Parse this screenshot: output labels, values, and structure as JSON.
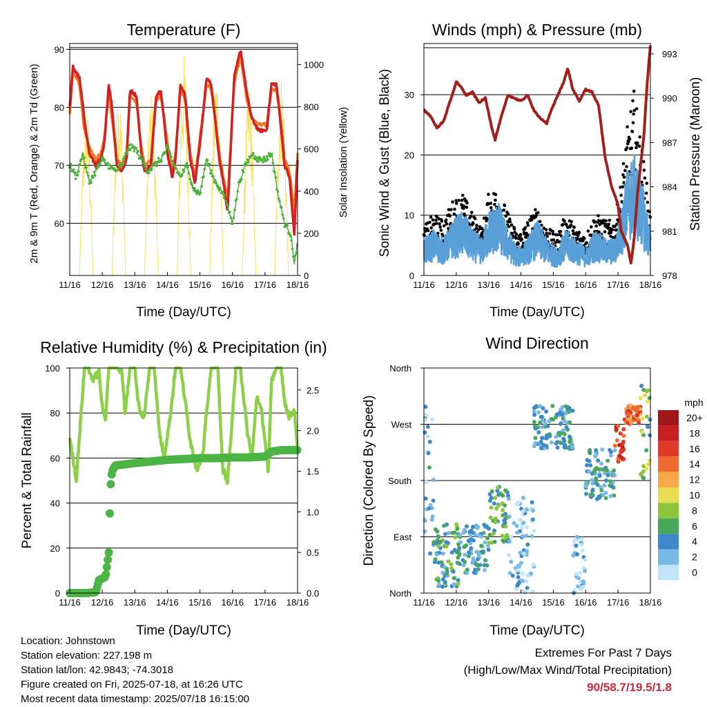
{
  "x_ticks": [
    "11/16",
    "12/16",
    "13/16",
    "14/16",
    "15/16",
    "16/16",
    "17/16",
    "18/16"
  ],
  "x_title": "Time (Day/UTC)",
  "colors": {
    "red": "#d42020",
    "orange": "#f07828",
    "green": "#4caf3c",
    "yellow": "#f8e060",
    "maroon": "#a0201e",
    "blue": "#5aa0d8",
    "black": "#000000",
    "rh_green": "#8cd04a",
    "precip_green": "#4cb444"
  },
  "temperature": {
    "title": "Temperature (F)",
    "ylabel_left": "2m & 9m T (Red, Orange) & 2m Td (Green)",
    "ylabel_right": "Solar Insolation (Yellow)",
    "left_ticks": [
      "60",
      "70",
      "80",
      "90"
    ],
    "right_ticks": [
      "0",
      "200",
      "400",
      "600",
      "800",
      "1000"
    ],
    "chart_data": {
      "type": "line",
      "ylim": [
        51,
        91
      ],
      "y2lim": [
        0,
        1100
      ],
      "x_range_days": [
        0,
        7
      ],
      "series": [
        {
          "name": "2m T (Red)",
          "x": [
            0,
            0.1,
            0.3,
            0.45,
            0.6,
            0.8,
            0.95,
            1.05,
            1.2,
            1.3,
            1.45,
            1.6,
            1.75,
            1.85,
            2.05,
            2.2,
            2.3,
            2.5,
            2.65,
            2.8,
            3.0,
            3.15,
            3.25,
            3.4,
            3.55,
            3.7,
            3.85,
            4.05,
            4.2,
            4.35,
            4.6,
            4.75,
            4.85,
            5.05,
            5.25,
            5.45,
            5.6,
            5.8,
            6.05,
            6.2,
            6.35,
            6.5,
            6.6,
            6.75,
            6.9,
            7.0
          ],
          "y": [
            80,
            87,
            85,
            78,
            72,
            70,
            71,
            73,
            84,
            80,
            70,
            69,
            71,
            83,
            82,
            72,
            69,
            70,
            82,
            83,
            72,
            68,
            71,
            84,
            82,
            71,
            67,
            76,
            85,
            84,
            71,
            66,
            62,
            85,
            90,
            82,
            78,
            76,
            76,
            84,
            84,
            76,
            70,
            68,
            58,
            71
          ]
        },
        {
          "name": "9m T (Orange)",
          "x": [
            0,
            0.1,
            0.3,
            0.45,
            0.6,
            0.8,
            0.95,
            1.05,
            1.2,
            1.3,
            1.45,
            1.6,
            1.75,
            1.85,
            2.05,
            2.2,
            2.3,
            2.5,
            2.65,
            2.8,
            3.0,
            3.15,
            3.25,
            3.4,
            3.55,
            3.7,
            3.85,
            4.05,
            4.2,
            4.35,
            4.6,
            4.75,
            4.85,
            5.05,
            5.25,
            5.45,
            5.6,
            5.8,
            6.05,
            6.2,
            6.35,
            6.5,
            6.6,
            6.75,
            6.9,
            7.0
          ],
          "y": [
            79,
            86,
            84,
            76,
            73,
            71,
            72,
            74,
            83,
            78,
            71,
            70,
            72,
            82,
            81,
            73,
            70,
            71,
            81,
            82,
            74,
            69,
            72,
            83,
            81,
            72,
            68,
            77,
            84,
            83,
            72,
            67,
            64,
            84,
            89,
            81,
            78,
            77,
            77,
            83,
            83,
            77,
            71,
            69,
            62,
            72
          ]
        },
        {
          "name": "2m Td (Green)",
          "x": [
            0,
            0.2,
            0.4,
            0.6,
            0.8,
            1.0,
            1.2,
            1.4,
            1.6,
            1.8,
            2.0,
            2.2,
            2.4,
            2.6,
            2.8,
            3.0,
            3.2,
            3.4,
            3.6,
            3.8,
            4.0,
            4.2,
            4.4,
            4.6,
            4.8,
            5.0,
            5.2,
            5.4,
            5.6,
            5.8,
            6.0,
            6.2,
            6.4,
            6.6,
            6.8,
            6.9,
            7.0
          ],
          "y": [
            70,
            68,
            72,
            67,
            69,
            71,
            70,
            69,
            70,
            73,
            73,
            71,
            69,
            70,
            71,
            73,
            70,
            68,
            70,
            66,
            65,
            71,
            68,
            66,
            64,
            60,
            67,
            70,
            72,
            71,
            71,
            72,
            65,
            60,
            58,
            53,
            57
          ]
        },
        {
          "name": "Solar Insolation (Yellow)",
          "axis": "y2",
          "peaks_x": [
            0.5,
            1.5,
            2.5,
            3.5,
            4.5,
            5.5,
            6.5
          ],
          "peaks_y": [
            820,
            900,
            880,
            1050,
            1000,
            920,
            960
          ]
        }
      ]
    }
  },
  "winds": {
    "title": "Winds (mph) & Pressure (mb)",
    "ylabel_left": "Sonic Wind & Gust (Blue, Black)",
    "ylabel_right": "Station Pressure (Maroon)",
    "left_ticks": [
      "0",
      "10",
      "20",
      "30"
    ],
    "right_ticks": [
      "978",
      "981",
      "984",
      "987",
      "990",
      "993"
    ],
    "chart_data": {
      "type": "line",
      "ylim": [
        0,
        38.5
      ],
      "y2lim": [
        978,
        993.7
      ],
      "series": [
        {
          "name": "Station Pressure (Maroon)",
          "axis": "y2",
          "x": [
            0,
            0.2,
            0.4,
            0.6,
            0.9,
            1.0,
            1.2,
            1.3,
            1.5,
            1.7,
            1.9,
            2.1,
            2.2,
            2.4,
            2.6,
            2.8,
            3.0,
            3.2,
            3.4,
            3.6,
            3.8,
            3.9,
            4.1,
            4.3,
            4.45,
            4.6,
            4.8,
            5.0,
            5.2,
            5.4,
            5.6,
            5.8,
            6.0,
            6.1,
            6.2,
            6.3,
            6.4,
            6.5,
            6.6,
            6.8,
            6.9,
            7.0
          ],
          "y": [
            989.2,
            988.8,
            988.0,
            988.4,
            990.4,
            991.1,
            990.6,
            990.2,
            990.4,
            989.7,
            990.0,
            988.0,
            987.2,
            988.8,
            990.2,
            990.0,
            989.8,
            990.2,
            989.2,
            988.6,
            988.3,
            989.0,
            990.0,
            991.0,
            992.0,
            990.6,
            989.8,
            990.6,
            990.4,
            989.5,
            986.0,
            984.0,
            982.8,
            981.0,
            980.5,
            980.0,
            978.8,
            980.5,
            983.5,
            987.5,
            991.0,
            993.6
          ]
        },
        {
          "name": "Sonic Wind (Blue)",
          "x": [
            0,
            0.3,
            0.6,
            0.9,
            1.2,
            1.5,
            1.8,
            2.0,
            2.3,
            2.6,
            2.9,
            3.2,
            3.5,
            3.8,
            4.1,
            4.4,
            4.7,
            5.0,
            5.3,
            5.6,
            5.9,
            6.1,
            6.3,
            6.5,
            6.7,
            6.9,
            7.0
          ],
          "y": [
            4,
            5,
            4,
            6,
            7,
            5,
            4,
            7,
            8,
            5,
            3,
            4,
            6,
            4,
            3,
            5,
            4,
            3,
            5,
            4,
            4,
            7,
            12,
            13,
            11,
            7,
            5
          ]
        },
        {
          "name": "Gust (Black)",
          "x": [
            0,
            0.3,
            0.6,
            0.9,
            1.2,
            1.5,
            1.8,
            2.0,
            2.3,
            2.6,
            2.9,
            3.2,
            3.5,
            3.8,
            4.1,
            4.4,
            4.7,
            5.0,
            5.3,
            5.6,
            5.9,
            6.1,
            6.3,
            6.5,
            6.7,
            6.9,
            7.0
          ],
          "y": [
            7,
            9,
            8,
            11,
            12,
            9,
            7,
            12,
            13,
            9,
            6,
            8,
            10,
            7,
            6,
            9,
            7,
            6,
            9,
            8,
            8,
            14,
            22,
            27,
            20,
            13,
            9
          ]
        }
      ]
    }
  },
  "humidity": {
    "title": "Relative Humidity (%) & Precipitation (in)",
    "ylabel_left": "Percent & Total Rainfall",
    "left_ticks": [
      "0",
      "20",
      "40",
      "60",
      "80",
      "100"
    ],
    "right_ticks": [
      "0.0",
      "0.5",
      "1.0",
      "1.5",
      "2.0",
      "2.5"
    ],
    "chart_data": {
      "type": "line",
      "ylim": [
        0,
        100
      ],
      "y2lim": [
        0,
        2.77
      ],
      "series": [
        {
          "name": "Relative Humidity",
          "x": [
            0,
            0.1,
            0.2,
            0.3,
            0.45,
            0.55,
            0.7,
            0.9,
            1.0,
            1.1,
            1.2,
            1.3,
            1.45,
            1.6,
            1.7,
            1.85,
            2.0,
            2.1,
            2.2,
            2.3,
            2.45,
            2.6,
            2.75,
            2.9,
            3.1,
            3.25,
            3.4,
            3.55,
            3.7,
            3.9,
            4.1,
            4.2,
            4.35,
            4.55,
            4.7,
            4.85,
            5.0,
            5.1,
            5.25,
            5.45,
            5.6,
            5.75,
            5.9,
            6.0,
            6.1,
            6.2,
            6.35,
            6.5,
            6.6,
            6.75,
            6.9,
            7.0
          ],
          "y": [
            68,
            60,
            50,
            70,
            100,
            100,
            95,
            98,
            82,
            78,
            100,
            100,
            100,
            98,
            80,
            100,
            100,
            85,
            78,
            80,
            100,
            100,
            72,
            60,
            80,
            100,
            100,
            85,
            68,
            55,
            62,
            80,
            100,
            100,
            55,
            50,
            78,
            100,
            100,
            72,
            60,
            88,
            80,
            68,
            52,
            95,
            100,
            100,
            85,
            78,
            82,
            62
          ]
        },
        {
          "name": "Total Precipitation",
          "axis": "y2",
          "x": [
            0,
            0.5,
            0.8,
            0.9,
            1.0,
            1.1,
            1.2,
            1.25,
            1.3,
            1.4,
            1.6,
            2.0,
            2.5,
            3.0,
            3.5,
            4.0,
            4.5,
            5.0,
            5.5,
            6.0,
            6.2,
            6.5,
            7.0
          ],
          "y": [
            0,
            0,
            0.01,
            0.16,
            0.18,
            0.2,
            0.5,
            1.3,
            1.5,
            1.57,
            1.58,
            1.6,
            1.62,
            1.64,
            1.65,
            1.66,
            1.66,
            1.67,
            1.67,
            1.68,
            1.74,
            1.76,
            1.76
          ]
        }
      ]
    }
  },
  "direction": {
    "title": "Wind Direction",
    "ylabel_left": "Direction (Colored By Speed)",
    "y_ticks": [
      "North",
      "East",
      "South",
      "West",
      "North"
    ],
    "legend_unit": "mph",
    "legend_labels": [
      "20+",
      "18",
      "16",
      "14",
      "12",
      "10",
      "8",
      "6",
      "4",
      "2",
      "0"
    ],
    "legend_colors": [
      "#a01818",
      "#c82020",
      "#e03a28",
      "#f06a30",
      "#f8a848",
      "#e8dc50",
      "#8cc43c",
      "#48a85a",
      "#3c88c8",
      "#78b8e4",
      "#c0e4f8"
    ],
    "chart_data": {
      "type": "scatter",
      "ylim_deg": [
        0,
        360
      ],
      "x_range_days": [
        0,
        7
      ],
      "color_by": "speed_mph",
      "clusters": [
        {
          "x": [
            0.0,
            0.3
          ],
          "dir": [
            60,
            300
          ],
          "speed": 3
        },
        {
          "x": [
            0.3,
            1.1
          ],
          "dir": [
            10,
            110
          ],
          "speed": 5
        },
        {
          "x": [
            1.0,
            2.0
          ],
          "dir": [
            30,
            110
          ],
          "speed": 4
        },
        {
          "x": [
            2.0,
            2.6
          ],
          "dir": [
            80,
            170
          ],
          "speed": 6
        },
        {
          "x": [
            2.6,
            3.4
          ],
          "dir": [
            0,
            160
          ],
          "speed": 2
        },
        {
          "x": [
            3.4,
            4.6
          ],
          "dir": [
            230,
            300
          ],
          "speed": 4
        },
        {
          "x": [
            4.6,
            5.0
          ],
          "dir": [
            0,
            90
          ],
          "speed": 1
        },
        {
          "x": [
            5.0,
            5.9
          ],
          "dir": [
            150,
            230
          ],
          "speed": 4
        },
        {
          "x": [
            5.9,
            6.2
          ],
          "dir": [
            210,
            270
          ],
          "speed": 16
        },
        {
          "x": [
            6.2,
            6.7
          ],
          "dir": [
            270,
            300
          ],
          "speed": 14
        },
        {
          "x": [
            6.7,
            7.0
          ],
          "dir": [
            180,
            340
          ],
          "speed": 7
        }
      ]
    }
  },
  "info": {
    "location": "Location: Johnstown",
    "elevation": "Station elevation: 227.198 m",
    "latlon": "Station lat/lon: 42.9843; -74.3018",
    "created": "Figure created on Fri, 2025-07-18, at 16:26 UTC",
    "recent": "Most recent data timestamp: 2025/07/18 16:15:00"
  },
  "extremes": {
    "title": "Extremes For Past 7 Days",
    "subtitle": "(High/Low/Max Wind/Total Precipitation)",
    "values": "90/58.7/19.5/1.8"
  }
}
